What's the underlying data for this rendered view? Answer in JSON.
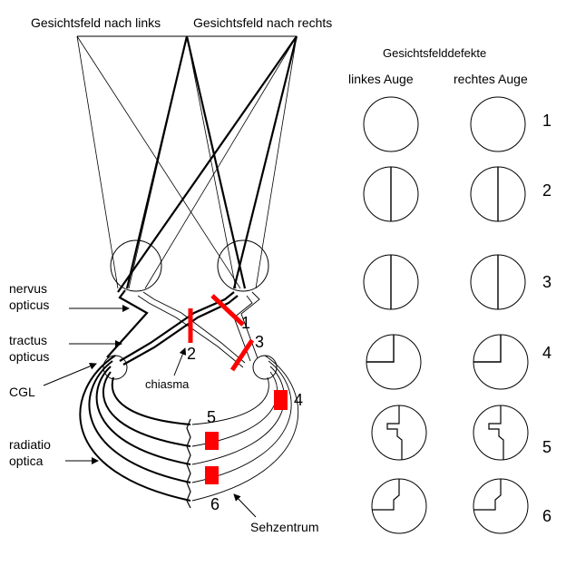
{
  "header": {
    "field_left": "Gesichtsfeld nach links",
    "field_right": "Gesichtsfeld nach rechts"
  },
  "anatomy": {
    "nervus": "nervus",
    "opticus": "opticus",
    "tractus": "tractus",
    "tractus_opticus": "opticus",
    "cgl": "CGL",
    "chiasma": "chiasma",
    "radiatio": "radiatio",
    "optica": "optica",
    "sehzentrum": "Sehzentrum"
  },
  "lesions": {
    "l1": "1",
    "l2": "2",
    "l3": "3",
    "l4": "4",
    "l5": "5",
    "l6": "6",
    "marker_color": "#ff0000"
  },
  "defects_panel": {
    "title": "Gesichtsfelddefekte",
    "col_left": "linkes Auge",
    "col_right": "rechtes Auge",
    "row_numbers": [
      "1",
      "2",
      "3",
      "4",
      "5",
      "6"
    ]
  }
}
